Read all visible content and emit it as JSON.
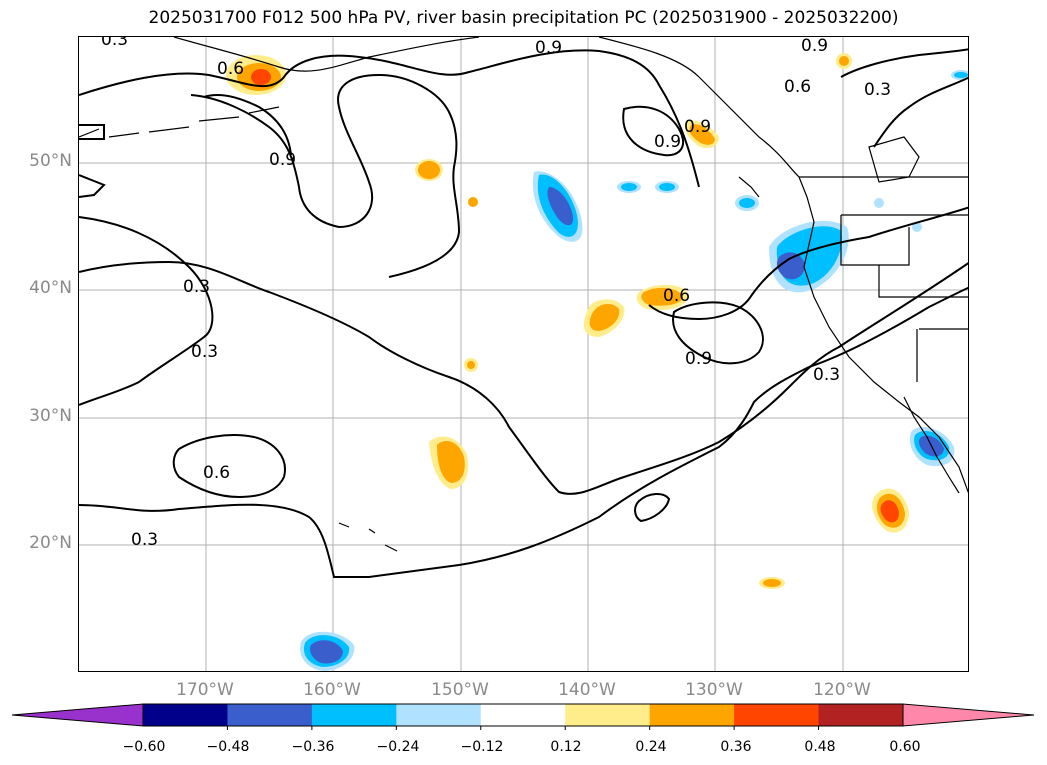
{
  "title": "2025031700 F012 500 hPa PV, river basin precipitation PC (2025031900 - 2025032200)",
  "latitude_labels": [
    "50°N",
    "40°N",
    "30°N",
    "20°N"
  ],
  "longitude_labels": [
    "170°W",
    "160°W",
    "150°W",
    "140°W",
    "130°W",
    "120°W"
  ],
  "contour_labels": [
    "0.3",
    "0.9",
    "0.9",
    "0.6",
    "0.3",
    "0.6",
    "0.9",
    "0.9",
    "0.9",
    "0.3",
    "0.3",
    "0.6",
    "0.9",
    "0.3",
    "0.6",
    "0.3"
  ],
  "colorbar": {
    "tick_labels": [
      "−0.60",
      "−0.48",
      "−0.36",
      "−0.24",
      "−0.12",
      "0.12",
      "0.24",
      "0.36",
      "0.48",
      "0.60"
    ],
    "colors": [
      "#9932cc",
      "#00008b",
      "#3a5fcd",
      "#00bfff",
      "#b0e2ff",
      "#ffffff",
      "#ffec8b",
      "#ffa500",
      "#ff4500",
      "#b22222",
      "#ff88aa"
    ]
  },
  "map_extent": {
    "lon_min": -180,
    "lon_max": -110,
    "lat_min": 10,
    "lat_max": 60
  }
}
